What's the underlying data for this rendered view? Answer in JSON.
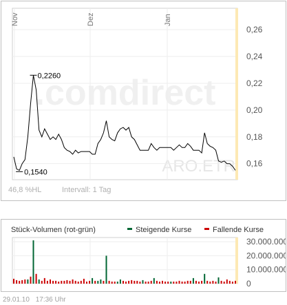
{
  "chart_data": [
    {
      "type": "line",
      "title": "",
      "xlabel": "",
      "ylabel": "",
      "x_tick_labels": [
        "Nov",
        "Dez",
        "Jan"
      ],
      "y_ticks": [
        "0,26",
        "0,24",
        "0,22",
        "0,20",
        "0,18",
        "0,16"
      ],
      "ylim": [
        0.148,
        0.276
      ],
      "grid": true,
      "watermark": ".comdirect",
      "symbol": "ARO.ETR",
      "annotations": {
        "high_label": "0,2260",
        "high_value": 0.226,
        "low_label": "0,1540",
        "low_value": 0.154
      },
      "series": [
        {
          "values": [
            0.165,
            0.156,
            0.155,
            0.16,
            0.163,
            0.18,
            0.205,
            0.226,
            0.215,
            0.185,
            0.18,
            0.186,
            0.182,
            0.178,
            0.18,
            0.178,
            0.182,
            0.178,
            0.172,
            0.17,
            0.169,
            0.167,
            0.17,
            0.168,
            0.169,
            0.169,
            0.169,
            0.169,
            0.167,
            0.167,
            0.175,
            0.178,
            0.183,
            0.192,
            0.18,
            0.178,
            0.177,
            0.183,
            0.186,
            0.187,
            0.185,
            0.187,
            0.18,
            0.178,
            0.174,
            0.17,
            0.17,
            0.17,
            0.17,
            0.175,
            0.172,
            0.17,
            0.172,
            0.172,
            0.172,
            0.172,
            0.172,
            0.17,
            0.172,
            0.174,
            0.172,
            0.172,
            0.175,
            0.173,
            0.17,
            0.17,
            0.17,
            0.168,
            0.183,
            0.175,
            0.173,
            0.172,
            0.17,
            0.162,
            0.161,
            0.162,
            0.16,
            0.16,
            0.158,
            0.155
          ]
        }
      ],
      "footer_range": "46,8 %HL",
      "footer_interval": "Intervall: 1 Tag"
    },
    {
      "type": "bar",
      "title": "Stück-Volumen (rot-grün)",
      "y_ticks": [
        "30.000.000",
        "20.000.000",
        "10.000.000",
        "0"
      ],
      "ylim": [
        0,
        33000000
      ],
      "legend": [
        {
          "name": "Steigende Kurse",
          "color": "#006633"
        },
        {
          "name": "Fallende Kurse",
          "color": "#cc0000"
        }
      ],
      "legend_position": "top-right",
      "series": [
        {
          "name": "Steigende Kurse",
          "color": "#006633"
        },
        {
          "name": "Fallende Kurse",
          "color": "#cc0000"
        }
      ],
      "bars": [
        [
          3500000,
          "down"
        ],
        [
          2500000,
          "down"
        ],
        [
          2000000,
          "down"
        ],
        [
          2500000,
          "down"
        ],
        [
          3000000,
          "down"
        ],
        [
          3000000,
          "up"
        ],
        [
          5000000,
          "down"
        ],
        [
          31000000,
          "up"
        ],
        [
          7000000,
          "down"
        ],
        [
          3000000,
          "up"
        ],
        [
          2000000,
          "down"
        ],
        [
          4000000,
          "down"
        ],
        [
          2000000,
          "down"
        ],
        [
          3000000,
          "down"
        ],
        [
          2000000,
          "down"
        ],
        [
          2000000,
          "down"
        ],
        [
          1500000,
          "down"
        ],
        [
          2000000,
          "down"
        ],
        [
          2000000,
          "down"
        ],
        [
          2500000,
          "down"
        ],
        [
          2000000,
          "down"
        ],
        [
          3000000,
          "down"
        ],
        [
          2000000,
          "down"
        ],
        [
          1500000,
          "down"
        ],
        [
          2000000,
          "down"
        ],
        [
          3500000,
          "down"
        ],
        [
          1500000,
          "down"
        ],
        [
          2000000,
          "down"
        ],
        [
          4000000,
          "up"
        ],
        [
          2000000,
          "down"
        ],
        [
          2000000,
          "up"
        ],
        [
          3000000,
          "up"
        ],
        [
          2000000,
          "down"
        ],
        [
          20000000,
          "up"
        ],
        [
          2000000,
          "down"
        ],
        [
          1500000,
          "down"
        ],
        [
          1500000,
          "down"
        ],
        [
          1500000,
          "up"
        ],
        [
          3000000,
          "up"
        ],
        [
          2000000,
          "down"
        ],
        [
          1500000,
          "down"
        ],
        [
          2000000,
          "down"
        ],
        [
          2500000,
          "down"
        ],
        [
          2000000,
          "down"
        ],
        [
          2000000,
          "down"
        ],
        [
          1500000,
          "down"
        ],
        [
          2500000,
          "up"
        ],
        [
          1500000,
          "down"
        ],
        [
          1500000,
          "down"
        ],
        [
          2000000,
          "down"
        ],
        [
          4000000,
          "up"
        ],
        [
          2000000,
          "down"
        ],
        [
          1500000,
          "down"
        ],
        [
          2000000,
          "down"
        ],
        [
          1500000,
          "down"
        ],
        [
          1500000,
          "down"
        ],
        [
          1500000,
          "up"
        ],
        [
          1500000,
          "down"
        ],
        [
          1500000,
          "down"
        ],
        [
          2000000,
          "down"
        ],
        [
          1500000,
          "down"
        ],
        [
          1500000,
          "down"
        ],
        [
          2000000,
          "down"
        ],
        [
          2000000,
          "down"
        ],
        [
          4000000,
          "up"
        ],
        [
          2000000,
          "down"
        ],
        [
          1500000,
          "down"
        ],
        [
          2000000,
          "down"
        ],
        [
          7000000,
          "up"
        ],
        [
          2000000,
          "down"
        ],
        [
          1500000,
          "down"
        ],
        [
          2000000,
          "down"
        ],
        [
          1500000,
          "down"
        ],
        [
          4500000,
          "up"
        ],
        [
          2000000,
          "down"
        ],
        [
          1500000,
          "down"
        ],
        [
          3000000,
          "down"
        ],
        [
          2000000,
          "down"
        ],
        [
          1500000,
          "down"
        ],
        [
          2000000,
          "down"
        ]
      ]
    }
  ],
  "footer": {
    "date": "29.01.10",
    "time": "17:36 Uhr"
  }
}
